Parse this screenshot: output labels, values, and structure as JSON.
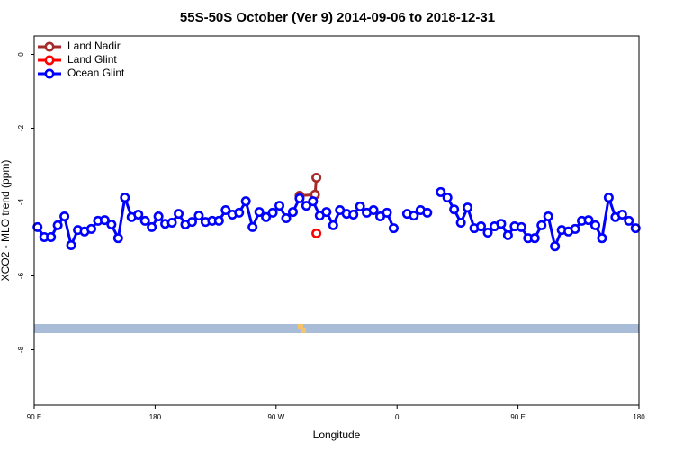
{
  "chart_data": {
    "type": "line",
    "title": "55S-50S October (Ver 9)   2014-09-06 to 2018-12-31",
    "xlabel": "Longitude",
    "ylabel": "XCO2 - MLO trend (ppm)",
    "xlim": [
      90,
      540
    ],
    "ylim": [
      -9.5,
      0.5
    ],
    "xticks": [
      {
        "value": 90,
        "label": "90 E"
      },
      {
        "value": 180,
        "label": "180"
      },
      {
        "value": 270,
        "label": "90 W"
      },
      {
        "value": 360,
        "label": "0"
      },
      {
        "value": 450,
        "label": "90 E"
      },
      {
        "value": 540,
        "label": "180"
      }
    ],
    "yticks": [
      0,
      -2,
      -4,
      -6,
      -8
    ],
    "legend": "upper left",
    "series": [
      {
        "name": "Land Nadir",
        "color": "#a52a2a",
        "x": [
          287.5,
          299,
          300
        ],
        "values": [
          -3.83,
          -3.8,
          -3.34
        ]
      },
      {
        "name": "Land Glint",
        "color": "#ff0000",
        "x": [
          300
        ],
        "values": [
          -4.85
        ]
      },
      {
        "name": "Ocean Glint",
        "color": "#0000ff",
        "x": [
          92.5,
          97.5,
          102.5,
          107.5,
          112.5,
          117.5,
          122.5,
          127.5,
          132.5,
          137.5,
          142.5,
          147.5,
          152.5,
          157.5,
          162.5,
          167.5,
          172.5,
          177.5,
          182.5,
          187.5,
          192.5,
          197.5,
          202.5,
          207.5,
          212.5,
          217.5,
          222.5,
          227.5,
          232.5,
          237.5,
          242.5,
          247.5,
          252.5,
          257.5,
          262.5,
          267.5,
          272.5,
          277.5,
          282.5,
          287.5,
          292.5,
          297.5,
          302.5,
          307.5,
          312.5,
          317.5,
          322.5,
          327.5,
          332.5,
          337.5,
          342.5,
          347.5,
          352.5,
          357.5,
          362.5,
          367.5,
          372.5,
          377.5,
          382.5,
          387.5,
          392.5,
          397.5,
          402.5,
          407.5,
          412.5,
          417.5,
          422.5,
          427.5,
          432.5,
          437.5,
          442.5,
          447.5,
          452.5,
          457.5,
          462.5,
          467.5,
          472.5,
          477.5,
          482.5,
          487.5,
          492.5,
          497.5,
          502.5,
          507.5,
          512.5,
          517.5,
          522.5,
          527.5,
          532.5,
          537.5
        ],
        "values": [
          -4.68,
          -4.95,
          -4.95,
          -4.63,
          -4.39,
          -5.17,
          -4.76,
          -4.8,
          -4.73,
          -4.51,
          -4.49,
          -4.61,
          -4.98,
          -3.88,
          -4.41,
          -4.34,
          -4.51,
          -4.68,
          -4.39,
          -4.59,
          -4.56,
          -4.32,
          -4.61,
          -4.54,
          -4.37,
          -4.54,
          -4.51,
          -4.51,
          -4.22,
          -4.34,
          -4.29,
          -3.98,
          -4.68,
          -4.27,
          -4.41,
          -4.29,
          -4.1,
          -4.44,
          -4.27,
          -3.9,
          -4.1,
          -3.98,
          -4.37,
          -4.27,
          -4.63,
          -4.22,
          -4.32,
          -4.34,
          -4.12,
          -4.29,
          -4.22,
          -4.39,
          -4.29,
          -4.71,
          null,
          -4.32,
          -4.37,
          -4.22,
          -4.29,
          null,
          -3.73,
          -3.88,
          -4.2,
          -4.56,
          -4.15,
          -4.71,
          -4.66,
          -4.83,
          -4.66,
          -4.59,
          -4.9,
          -4.66,
          -4.68,
          -4.98,
          -4.98,
          -4.63,
          -4.39,
          -5.2,
          -4.76,
          -4.8,
          -4.73,
          -4.51,
          -4.49,
          -4.63,
          -4.98,
          -3.88,
          -4.41,
          -4.34,
          -4.51,
          -4.71
        ]
      }
    ]
  }
}
